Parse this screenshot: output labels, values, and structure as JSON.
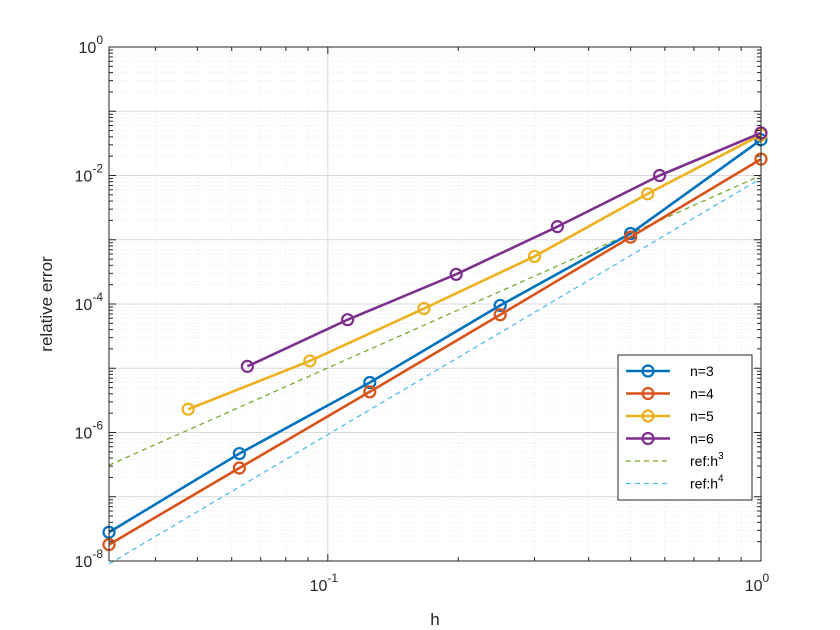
{
  "chart_data": {
    "type": "line",
    "xscale": "log",
    "yscale": "log",
    "xlabel": "h",
    "ylabel": "relative error",
    "xlim": [
      0.03125,
      1
    ],
    "ylim": [
      1e-08,
      1
    ],
    "grid": true,
    "minor_grid": true,
    "legend_position": "bottom-right",
    "x_ticks": [
      {
        "value": 0.1,
        "base": "10",
        "exp": "-1"
      },
      {
        "value": 1,
        "base": "10",
        "exp": "0"
      }
    ],
    "y_ticks": [
      {
        "value": 1e-08,
        "base": "10",
        "exp": "-8"
      },
      {
        "value": 1e-06,
        "base": "10",
        "exp": "-6"
      },
      {
        "value": 0.0001,
        "base": "10",
        "exp": "-4"
      },
      {
        "value": 0.01,
        "base": "10",
        "exp": "-2"
      },
      {
        "value": 1,
        "base": "10",
        "exp": "0"
      }
    ],
    "series": [
      {
        "name": "n=3",
        "style": "solid",
        "marker": "circle",
        "color": "#0072BD",
        "x": [
          0.03125,
          0.0625,
          0.125,
          0.25,
          0.5,
          1
        ],
        "y": [
          2.8e-08,
          4.7e-07,
          6e-06,
          9.5e-05,
          0.00125,
          0.036
        ]
      },
      {
        "name": "n=4",
        "style": "solid",
        "marker": "circle",
        "color": "#D95319",
        "x": [
          0.03125,
          0.0625,
          0.125,
          0.25,
          0.5,
          1
        ],
        "y": [
          1.8e-08,
          2.8e-07,
          4.3e-06,
          6.8e-05,
          0.0011,
          0.018
        ]
      },
      {
        "name": "n=5",
        "style": "solid",
        "marker": "circle",
        "color": "#EDB120",
        "x": [
          0.0476,
          0.0909,
          0.1667,
          0.3,
          0.5476,
          1
        ],
        "y": [
          2.3e-06,
          1.3e-05,
          8.5e-05,
          0.00055,
          0.0052,
          0.043
        ]
      },
      {
        "name": "n=6",
        "style": "solid",
        "marker": "circle",
        "color": "#7E2F8E",
        "x": [
          0.0652,
          0.1111,
          0.1978,
          0.3388,
          0.5833,
          1
        ],
        "y": [
          1.07e-05,
          5.7e-05,
          0.00029,
          0.0016,
          0.01,
          0.046
        ]
      },
      {
        "name": "ref:h",
        "name_sup": "3",
        "style": "dashed",
        "marker": "none",
        "color": "#77AC30",
        "x": [
          0.03125,
          1
        ],
        "y": [
          3.1e-07,
          0.01
        ]
      },
      {
        "name": "ref:h",
        "name_sup": "4",
        "style": "dashed",
        "marker": "none",
        "color": "#4DBEEE",
        "x": [
          0.03125,
          1
        ],
        "y": [
          9e-09,
          0.009
        ]
      }
    ]
  }
}
